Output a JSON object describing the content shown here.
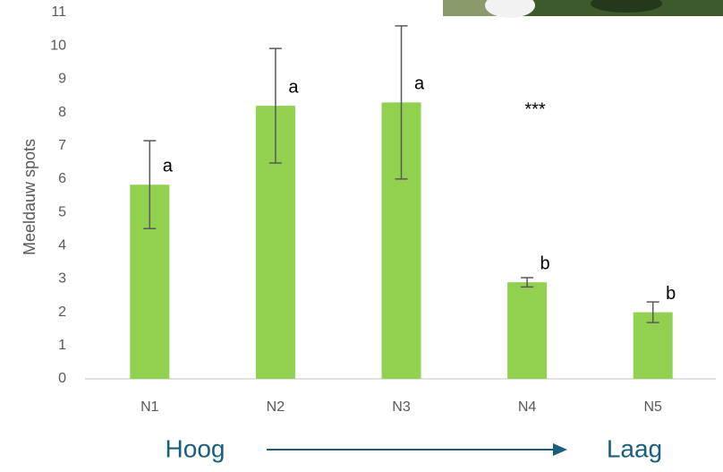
{
  "chart_data": {
    "type": "bar",
    "y_label": "Meeldauw spots",
    "categories": [
      "N1",
      "N2",
      "N3",
      "N4",
      "N5"
    ],
    "values": [
      5.83,
      8.2,
      8.3,
      2.9,
      2.0
    ],
    "errors": [
      1.32,
      1.72,
      2.3,
      0.14,
      0.31
    ],
    "significance_labels": [
      "a",
      "a",
      "a",
      "b",
      "b"
    ],
    "annotation": "***",
    "color": "#92d050",
    "ylim": [
      0,
      11
    ],
    "yticks": [
      0,
      1,
      2,
      3,
      4,
      5,
      6,
      7,
      8,
      9,
      10,
      11
    ],
    "grid": false,
    "arrow_start_label": "Hoog",
    "arrow_end_label": "Laag"
  }
}
